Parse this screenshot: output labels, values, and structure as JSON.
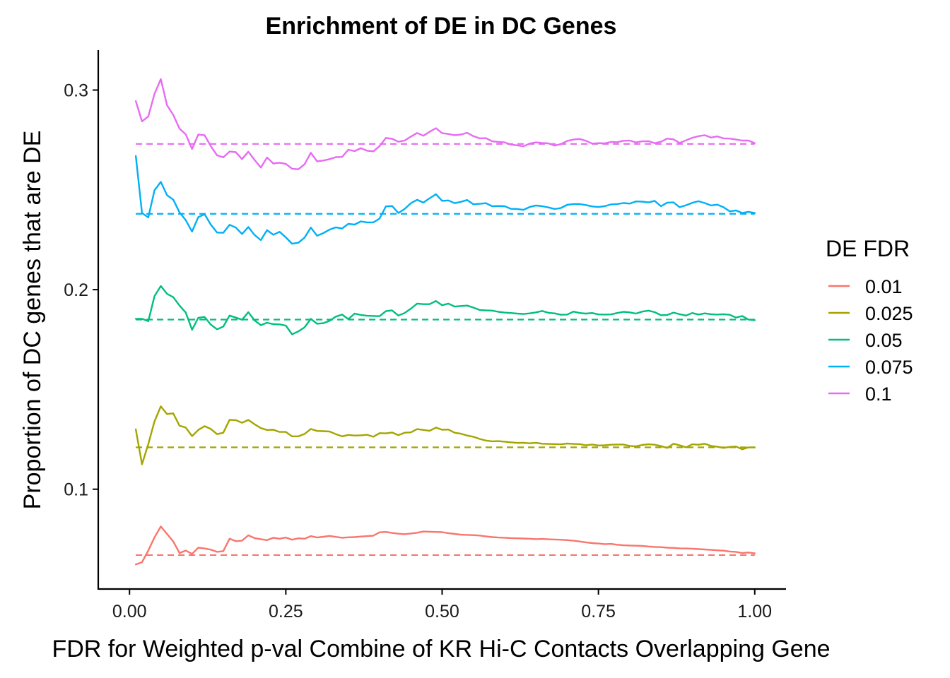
{
  "chart_data": {
    "type": "line",
    "title": "Enrichment of DE in DC Genes",
    "xlabel": "FDR for Weighted p-val Combine of KR Hi-C Contacts Overlapping Gene",
    "ylabel": "Proportion of DC genes that are DE",
    "xlim": [
      -0.05,
      1.05
    ],
    "ylim": [
      0.05,
      0.32
    ],
    "x_ticks": [
      {
        "value": 0.0,
        "label": "0.00"
      },
      {
        "value": 0.25,
        "label": "0.25"
      },
      {
        "value": 0.5,
        "label": "0.50"
      },
      {
        "value": 0.75,
        "label": "0.75"
      },
      {
        "value": 1.0,
        "label": "1.00"
      }
    ],
    "y_ticks": [
      {
        "value": 0.1,
        "label": "0.1"
      },
      {
        "value": 0.2,
        "label": "0.2"
      },
      {
        "value": 0.3,
        "label": "0.3"
      }
    ],
    "grid": false,
    "legend": {
      "title": "DE FDR",
      "position": "right"
    },
    "x": [
      0.01,
      0.02,
      0.03,
      0.04,
      0.05,
      0.06,
      0.07,
      0.08,
      0.09,
      0.1,
      0.11,
      0.12,
      0.13,
      0.14,
      0.15,
      0.16,
      0.17,
      0.18,
      0.19,
      0.2,
      0.21,
      0.22,
      0.23,
      0.24,
      0.25,
      0.26,
      0.27,
      0.28,
      0.29,
      0.3,
      0.31,
      0.32,
      0.33,
      0.34,
      0.35,
      0.36,
      0.37,
      0.38,
      0.39,
      0.4,
      0.41,
      0.42,
      0.43,
      0.44,
      0.45,
      0.46,
      0.47,
      0.48,
      0.49,
      0.5,
      0.51,
      0.52,
      0.53,
      0.54,
      0.55,
      0.56,
      0.57,
      0.58,
      0.59,
      0.6,
      0.61,
      0.62,
      0.63,
      0.64,
      0.65,
      0.66,
      0.67,
      0.68,
      0.69,
      0.7,
      0.71,
      0.72,
      0.73,
      0.74,
      0.75,
      0.76,
      0.77,
      0.78,
      0.79,
      0.8,
      0.81,
      0.82,
      0.83,
      0.84,
      0.85,
      0.86,
      0.87,
      0.88,
      0.89,
      0.9,
      0.91,
      0.92,
      0.93,
      0.94,
      0.95,
      0.96,
      0.97,
      0.98,
      0.99,
      1.0
    ],
    "series": [
      {
        "name": "0.01",
        "color": "#F8766D",
        "baseline": 0.067,
        "values": [
          0.0623,
          0.0634,
          0.0693,
          0.0759,
          0.0813,
          0.0776,
          0.0738,
          0.068,
          0.0693,
          0.0676,
          0.0707,
          0.0703,
          0.0697,
          0.0686,
          0.069,
          0.0752,
          0.074,
          0.0742,
          0.0769,
          0.0755,
          0.075,
          0.0745,
          0.0757,
          0.0752,
          0.0758,
          0.0747,
          0.0754,
          0.0752,
          0.0765,
          0.0758,
          0.0762,
          0.0766,
          0.0761,
          0.0757,
          0.0759,
          0.076,
          0.0763,
          0.0765,
          0.0767,
          0.0784,
          0.0786,
          0.0781,
          0.0777,
          0.0775,
          0.0778,
          0.0782,
          0.0788,
          0.0787,
          0.0786,
          0.0785,
          0.078,
          0.0776,
          0.0772,
          0.0771,
          0.077,
          0.0768,
          0.0764,
          0.076,
          0.0758,
          0.0757,
          0.0755,
          0.0754,
          0.0753,
          0.0752,
          0.075,
          0.0751,
          0.0749,
          0.0748,
          0.0747,
          0.0745,
          0.0742,
          0.0738,
          0.0734,
          0.073,
          0.0728,
          0.0725,
          0.0726,
          0.0722,
          0.0719,
          0.0718,
          0.0717,
          0.0716,
          0.0713,
          0.0711,
          0.071,
          0.0707,
          0.0706,
          0.0704,
          0.0703,
          0.0702,
          0.07,
          0.0698,
          0.0696,
          0.0694,
          0.0692,
          0.0688,
          0.0686,
          0.068,
          0.0683,
          0.0679
        ]
      },
      {
        "name": "0.025",
        "color": "#A3A500",
        "baseline": 0.121,
        "values": [
          0.13,
          0.1125,
          0.1226,
          0.134,
          0.1415,
          0.1377,
          0.138,
          0.1318,
          0.1309,
          0.1266,
          0.1297,
          0.1316,
          0.1302,
          0.1276,
          0.1283,
          0.1348,
          0.1346,
          0.1333,
          0.1347,
          0.1326,
          0.1306,
          0.1297,
          0.1298,
          0.1287,
          0.1287,
          0.1265,
          0.1265,
          0.1277,
          0.1302,
          0.1292,
          0.1291,
          0.1289,
          0.1276,
          0.1265,
          0.1272,
          0.1269,
          0.127,
          0.1273,
          0.1263,
          0.1281,
          0.128,
          0.1284,
          0.1271,
          0.1283,
          0.1285,
          0.1301,
          0.1297,
          0.1293,
          0.1309,
          0.1298,
          0.1299,
          0.1283,
          0.1278,
          0.1269,
          0.1263,
          0.1252,
          0.1244,
          0.124,
          0.1241,
          0.1238,
          0.1235,
          0.1232,
          0.1233,
          0.123,
          0.1233,
          0.1228,
          0.1227,
          0.1226,
          0.1225,
          0.1229,
          0.1227,
          0.1226,
          0.122,
          0.1224,
          0.1219,
          0.122,
          0.1223,
          0.1224,
          0.1224,
          0.1217,
          0.1215,
          0.1222,
          0.1225,
          0.1223,
          0.1216,
          0.1207,
          0.1228,
          0.122,
          0.121,
          0.1225,
          0.1223,
          0.1228,
          0.1217,
          0.1213,
          0.1207,
          0.1212,
          0.1214,
          0.12,
          0.121,
          0.1209
        ]
      },
      {
        "name": "0.05",
        "color": "#00BF7D",
        "baseline": 0.185,
        "values": [
          0.1854,
          0.1854,
          0.1842,
          0.1968,
          0.2018,
          0.1979,
          0.1962,
          0.192,
          0.1885,
          0.1799,
          0.1859,
          0.1863,
          0.1825,
          0.1801,
          0.1815,
          0.187,
          0.186,
          0.1849,
          0.1887,
          0.1846,
          0.1822,
          0.1834,
          0.1827,
          0.1826,
          0.182,
          0.1776,
          0.1791,
          0.1811,
          0.1854,
          0.1829,
          0.1832,
          0.1844,
          0.1865,
          0.1875,
          0.1852,
          0.188,
          0.1873,
          0.1869,
          0.1868,
          0.1867,
          0.1892,
          0.1896,
          0.187,
          0.1883,
          0.1905,
          0.193,
          0.1927,
          0.1927,
          0.1943,
          0.1922,
          0.193,
          0.1915,
          0.1918,
          0.192,
          0.191,
          0.1898,
          0.1896,
          0.1895,
          0.1889,
          0.1885,
          0.1883,
          0.188,
          0.1878,
          0.1881,
          0.1886,
          0.1893,
          0.1884,
          0.1881,
          0.1874,
          0.1875,
          0.189,
          0.1883,
          0.188,
          0.1883,
          0.1876,
          0.1875,
          0.1876,
          0.1883,
          0.1889,
          0.1886,
          0.188,
          0.189,
          0.1895,
          0.1887,
          0.1872,
          0.1873,
          0.1885,
          0.1877,
          0.187,
          0.1883,
          0.1875,
          0.1881,
          0.1877,
          0.1875,
          0.1877,
          0.1874,
          0.186,
          0.1868,
          0.185,
          0.1847
        ]
      },
      {
        "name": "0.075",
        "color": "#00B0F6",
        "baseline": 0.238,
        "values": [
          0.267,
          0.2384,
          0.2362,
          0.2498,
          0.254,
          0.2473,
          0.2451,
          0.2387,
          0.2348,
          0.2291,
          0.2363,
          0.2378,
          0.2326,
          0.2286,
          0.2285,
          0.2325,
          0.2311,
          0.2279,
          0.2314,
          0.2274,
          0.2248,
          0.2298,
          0.2275,
          0.229,
          0.2262,
          0.223,
          0.2235,
          0.2261,
          0.2311,
          0.227,
          0.2283,
          0.2301,
          0.2312,
          0.2306,
          0.233,
          0.2326,
          0.2342,
          0.2337,
          0.2337,
          0.2356,
          0.2417,
          0.2419,
          0.2384,
          0.2404,
          0.2433,
          0.245,
          0.2436,
          0.2458,
          0.2478,
          0.2445,
          0.2447,
          0.2433,
          0.244,
          0.2449,
          0.2428,
          0.243,
          0.2433,
          0.2418,
          0.2419,
          0.2418,
          0.2405,
          0.2404,
          0.24,
          0.2414,
          0.2422,
          0.2418,
          0.2412,
          0.2404,
          0.2409,
          0.2425,
          0.2429,
          0.2429,
          0.2424,
          0.2417,
          0.2414,
          0.2418,
          0.2427,
          0.2429,
          0.2434,
          0.2431,
          0.2442,
          0.2441,
          0.2437,
          0.2445,
          0.2418,
          0.2436,
          0.2437,
          0.2413,
          0.2423,
          0.2435,
          0.2443,
          0.2434,
          0.2422,
          0.2426,
          0.2413,
          0.2392,
          0.2397,
          0.2384,
          0.239,
          0.2384
        ]
      },
      {
        "name": "0.1",
        "color": "#E76BF3",
        "baseline": 0.273,
        "values": [
          0.2945,
          0.2843,
          0.2868,
          0.2981,
          0.3055,
          0.2924,
          0.2876,
          0.2807,
          0.2778,
          0.2705,
          0.2777,
          0.2774,
          0.2719,
          0.2673,
          0.2663,
          0.2692,
          0.2689,
          0.2654,
          0.2691,
          0.265,
          0.2612,
          0.2662,
          0.2632,
          0.2636,
          0.263,
          0.2606,
          0.2603,
          0.2628,
          0.2686,
          0.2643,
          0.2647,
          0.2654,
          0.2664,
          0.2665,
          0.2701,
          0.2694,
          0.2709,
          0.2696,
          0.2693,
          0.2719,
          0.276,
          0.2756,
          0.2741,
          0.2747,
          0.2767,
          0.2785,
          0.2771,
          0.2791,
          0.2809,
          0.2784,
          0.278,
          0.2774,
          0.2777,
          0.2786,
          0.2769,
          0.2758,
          0.2759,
          0.2743,
          0.274,
          0.2738,
          0.2727,
          0.2723,
          0.2718,
          0.2732,
          0.2738,
          0.2735,
          0.2733,
          0.2722,
          0.2729,
          0.2745,
          0.2752,
          0.2755,
          0.2746,
          0.2732,
          0.2734,
          0.2733,
          0.274,
          0.2739,
          0.2746,
          0.2747,
          0.2738,
          0.2743,
          0.2744,
          0.2734,
          0.2741,
          0.2757,
          0.2753,
          0.2735,
          0.2748,
          0.2761,
          0.2769,
          0.2774,
          0.2762,
          0.2768,
          0.2758,
          0.2757,
          0.2752,
          0.2747,
          0.2747,
          0.2734
        ]
      }
    ]
  }
}
